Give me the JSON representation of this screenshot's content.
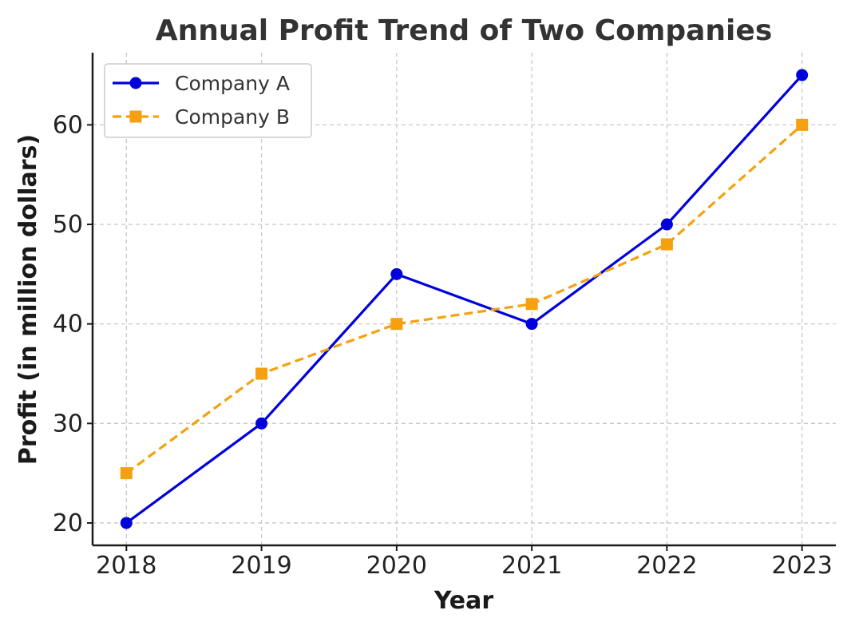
{
  "chart_data": {
    "type": "line",
    "title": "Annual Profit Trend of Two Companies",
    "xlabel": "Year",
    "ylabel": "Profit (in million dollars)",
    "categories": [
      "2018",
      "2019",
      "2020",
      "2021",
      "2022",
      "2023"
    ],
    "x_tick_labels": [
      "2018",
      "2019",
      "2020",
      "2021",
      "2022",
      "2023"
    ],
    "y_tick_labels": [
      "20",
      "30",
      "40",
      "50",
      "60"
    ],
    "y_ticks": [
      20,
      30,
      40,
      50,
      60
    ],
    "ylim": [
      17.75,
      67.25
    ],
    "xlim": [
      2017.75,
      2023.25
    ],
    "grid": true,
    "legend_position": "top-left",
    "series": [
      {
        "name": "Company A",
        "values": [
          20,
          30,
          45,
          40,
          50,
          65
        ],
        "color": "#0000dd",
        "line_style": "solid",
        "marker": "circle"
      },
      {
        "name": "Company B",
        "values": [
          25,
          35,
          40,
          42,
          48,
          60
        ],
        "color": "#f5a10f",
        "line_style": "dashed",
        "marker": "square"
      }
    ]
  }
}
